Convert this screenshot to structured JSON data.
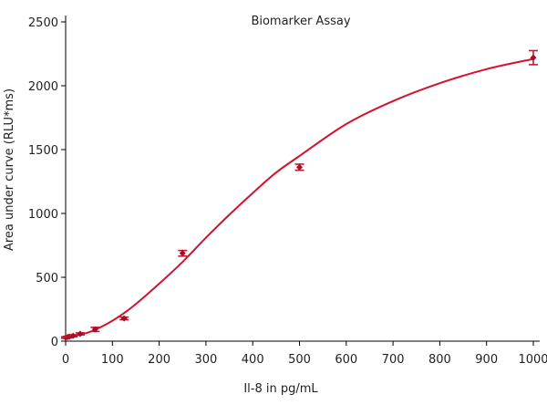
{
  "chart_data": {
    "type": "scatter",
    "title": "Biomarker Assay",
    "xlabel": "Il-8 in pg/mL",
    "ylabel": "Area under curve (RLU*ms)",
    "xlim": [
      0,
      1020
    ],
    "ylim": [
      0,
      2500
    ],
    "xticks": [
      0,
      100,
      200,
      300,
      400,
      500,
      600,
      700,
      800,
      900,
      1000
    ],
    "yticks": [
      0,
      500,
      1000,
      1500,
      2000,
      2500
    ],
    "grid": false,
    "legend": "none",
    "series": [
      {
        "x": [
          0,
          4,
          8,
          16,
          31,
          63,
          125,
          250,
          500,
          1000
        ],
        "y": [
          28,
          32,
          36,
          42,
          57,
          92,
          178,
          688,
          1362,
          2220
        ],
        "error": [
          6,
          6,
          6,
          8,
          8,
          16,
          10,
          22,
          24,
          55
        ],
        "color": "#d0132f"
      }
    ],
    "fit_curve": {
      "x": [
        0,
        25,
        50,
        75,
        100,
        125,
        150,
        200,
        250,
        300,
        350,
        400,
        450,
        500,
        600,
        700,
        800,
        900,
        1000
      ],
      "y": [
        30,
        45,
        70,
        110,
        160,
        220,
        290,
        450,
        620,
        810,
        990,
        1160,
        1320,
        1450,
        1700,
        1880,
        2020,
        2130,
        2210
      ],
      "color": "#d0132f"
    }
  }
}
